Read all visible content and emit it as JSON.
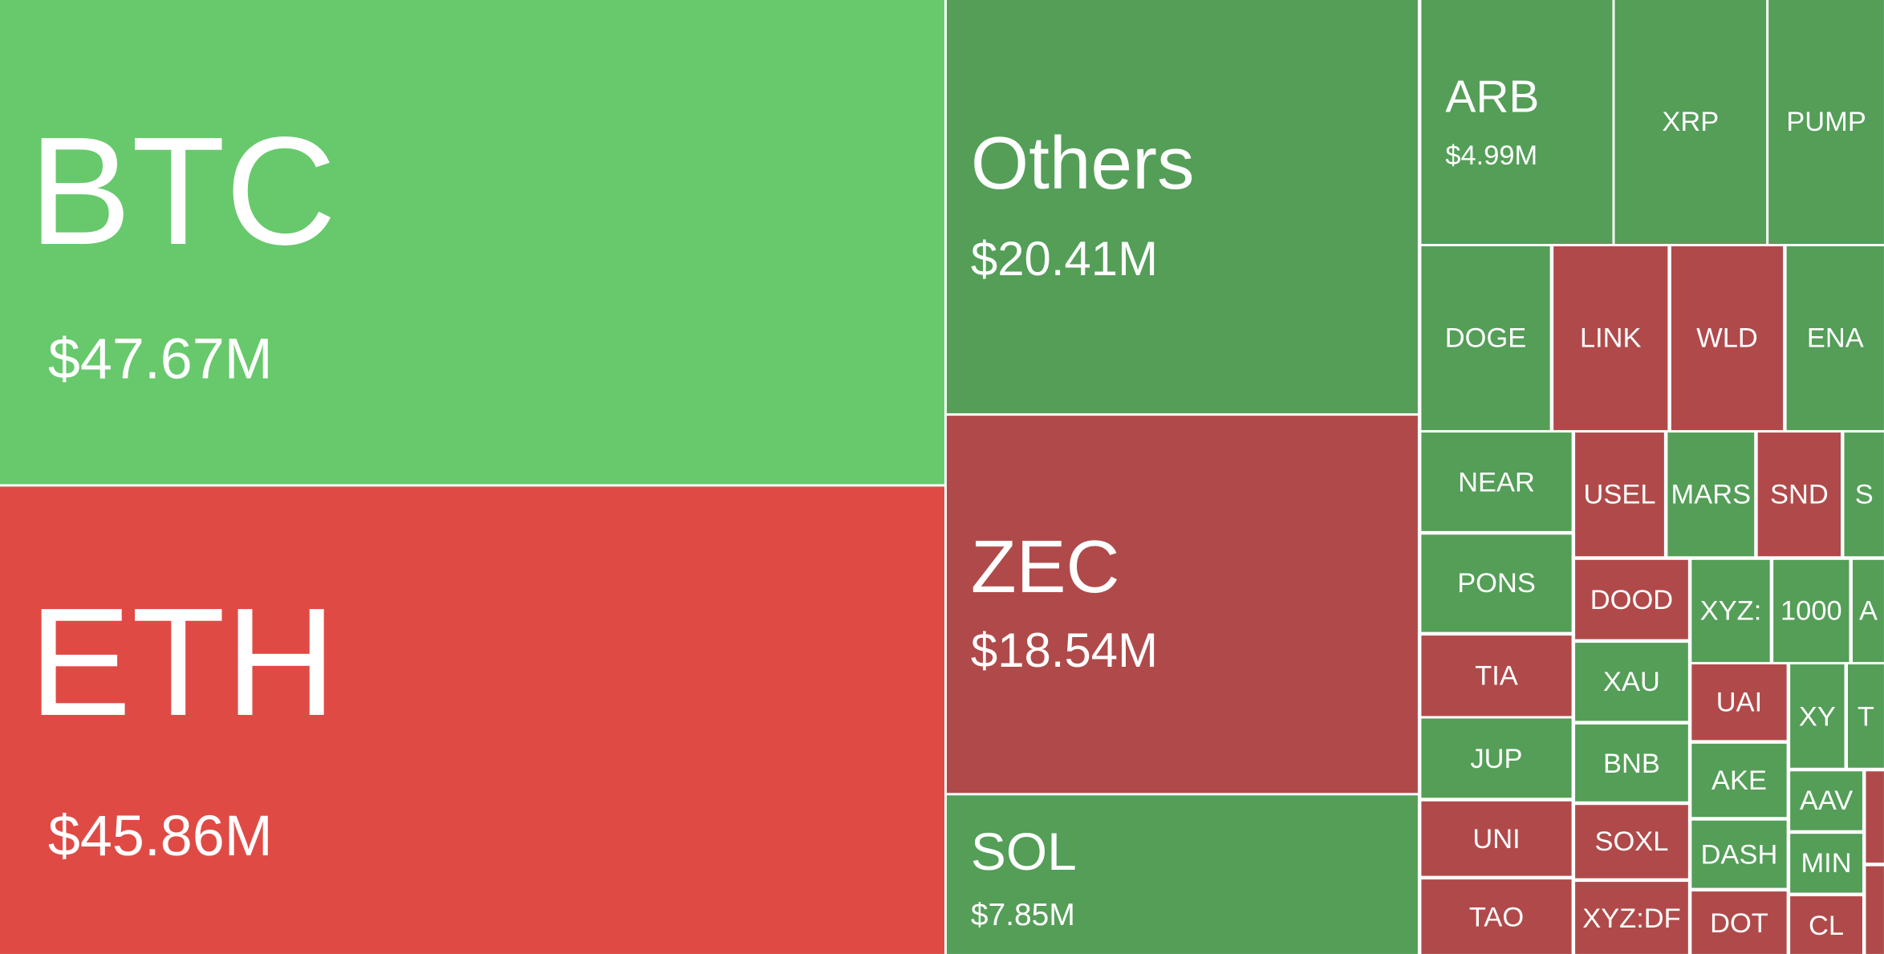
{
  "tiles": [
    {
      "label": "BTC",
      "value": "$47.67M"
    },
    {
      "label": "ETH",
      "value": "$45.86M"
    },
    {
      "label": "Others",
      "value": "$20.41M"
    },
    {
      "label": "ZEC",
      "value": "$18.54M"
    },
    {
      "label": "SOL",
      "value": "$7.85M"
    },
    {
      "label": "ARB",
      "value": "$4.99M"
    },
    {
      "label": "XRP"
    },
    {
      "label": "PUMP"
    },
    {
      "label": "DOGE"
    },
    {
      "label": "LINK"
    },
    {
      "label": "WLD"
    },
    {
      "label": "ENA"
    },
    {
      "label": "NEAR"
    },
    {
      "label": "PONS"
    },
    {
      "label": "TIA"
    },
    {
      "label": "JUP"
    },
    {
      "label": "UNI"
    },
    {
      "label": "TAO"
    },
    {
      "label": "USEL"
    },
    {
      "label": "MARS"
    },
    {
      "label": "SND"
    },
    {
      "label": "S"
    },
    {
      "label": "DOOD"
    },
    {
      "label": "XAU"
    },
    {
      "label": "BNB"
    },
    {
      "label": "SOXL"
    },
    {
      "label": "XYZ:DF"
    },
    {
      "label": "XYZ:"
    },
    {
      "label": "1000"
    },
    {
      "label": "A"
    },
    {
      "label": "UAI"
    },
    {
      "label": "AKE"
    },
    {
      "label": "DASH"
    },
    {
      "label": "DOT"
    },
    {
      "label": "XY"
    },
    {
      "label": "T"
    },
    {
      "label": "AAV"
    },
    {
      "label": "MIN"
    },
    {
      "label": "CL"
    }
  ]
}
